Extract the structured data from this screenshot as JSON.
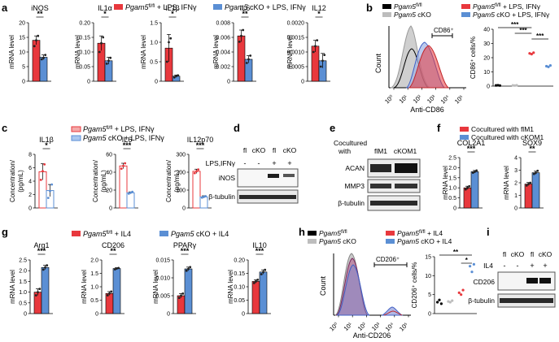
{
  "colors": {
    "red": "#e8383d",
    "blue": "#5b8fd4",
    "lightred": "#f4a9a9",
    "lightblue": "#a9c6ef",
    "black": "#000000",
    "grey": "#bdbdbd",
    "blot": "#2a2a2a"
  },
  "panels": {
    "a": "a",
    "b": "b",
    "c": "c",
    "d": "d",
    "e": "e",
    "f": "f",
    "g": "g",
    "h": "h",
    "i": "i"
  },
  "common": {
    "mrna_level": "mRNA level",
    "concentration": "Concentration/",
    "pg_ml": "(pg/mL)",
    "count": "Count",
    "beta_tubulin": "β-tubulin"
  },
  "chart_data": [
    {
      "panel": "a",
      "type": "bar",
      "title": "Panel a: cytokine mRNA (LPS, IFNγ)",
      "legend": [
        "Pgam5 fl/fl + LPS, IFNγ",
        "Pgam5 cKO + LPS, IFNγ"
      ],
      "ylabel": "mRNA level",
      "charts": [
        {
          "title": "iNOS",
          "ylim": [
            0,
            20
          ],
          "ticks": [
            "0",
            "5",
            "10",
            "15",
            "20"
          ],
          "values": [
            14,
            8.2
          ],
          "errors": [
            1.5,
            0.8
          ],
          "points": [
            [
              12,
              14,
              15.5
            ],
            [
              7.5,
              8,
              9
            ]
          ],
          "sig": "**"
        },
        {
          "title": "IL1α",
          "ylim": [
            0,
            0.2
          ],
          "ticks": [
            "0",
            "0.05",
            "0.10",
            "0.15",
            "0.20"
          ],
          "values": [
            0.13,
            0.07
          ],
          "errors": [
            0.025,
            0.012
          ],
          "points": [
            [
              0.1,
              0.13,
              0.15
            ],
            [
              0.06,
              0.07,
              0.08
            ]
          ],
          "sig": "*"
        },
        {
          "title": "IL1β",
          "ylim": [
            0,
            1.5
          ],
          "ticks": [
            "0",
            "0.5",
            "1.0",
            "1.5"
          ],
          "values": [
            0.85,
            0.13
          ],
          "errors": [
            0.35,
            0.03
          ],
          "points": [
            [
              0.5,
              1.0,
              1.1
            ],
            [
              0.1,
              0.13,
              0.15
            ]
          ],
          "sig": "*"
        },
        {
          "title": "IL6",
          "ylim": [
            0,
            0.008
          ],
          "ticks": [
            "0",
            "0.002",
            "0.004",
            "0.006",
            "0.008"
          ],
          "values": [
            0.0062,
            0.003
          ],
          "errors": [
            0.0008,
            0.0005
          ],
          "points": [
            [
              0.0054,
              0.0062,
              0.007
            ],
            [
              0.0025,
              0.003,
              0.0035
            ]
          ],
          "sig": "**"
        },
        {
          "title": "IL12",
          "ylim": [
            0,
            0.002
          ],
          "ticks": [
            "0",
            "0.0005",
            "0.0010",
            "0.0015",
            "0.0020"
          ],
          "values": [
            0.0012,
            0.0007
          ],
          "errors": [
            0.0002,
            0.00025
          ],
          "points": [
            [
              0.001,
              0.0012,
              0.0014
            ],
            [
              0.0005,
              0.0007,
              0.0009
            ]
          ],
          "sig": "*"
        }
      ]
    },
    {
      "panel": "b",
      "type": "histogram+scatter",
      "legend": [
        "Pgam5 fl/fl",
        "Pgam5 cKO",
        "Pgam5 fl/fl + LPS, IFNγ",
        "Pgam5 cKO + LPS, IFNγ"
      ],
      "hist": {
        "xlabel": "Anti-CD86",
        "ylabel": "Count",
        "gate": "CD86⁺",
        "xticks": [
          "10⁰",
          "10¹",
          "10²",
          "10³",
          "10⁴",
          "10⁵"
        ]
      },
      "scatter": {
        "ylabel": "CD86⁺ cells/%",
        "ylim": [
          0,
          40
        ],
        "ticks": [
          "0",
          "10",
          "20",
          "30",
          "40"
        ],
        "groups": [
          [
            0.5,
            0.6,
            0.4
          ],
          [
            0.5,
            0.4,
            0.6
          ],
          [
            23,
            22.5,
            23.5
          ],
          [
            14,
            13.5,
            14.5
          ]
        ],
        "sig": [
          "***",
          "***",
          "***"
        ]
      }
    },
    {
      "panel": "c",
      "type": "bar",
      "title": "Panel c: cytokine secretion",
      "legend": [
        "Pgam5 fl/fl + LPS, IFNγ",
        "Pgam5 cKO + LPS, IFNγ"
      ],
      "ylabel": "Concentration/ (pg/mL)",
      "charts": [
        {
          "title": "IL1β",
          "ylim": [
            0,
            8
          ],
          "ticks": [
            "0",
            "2",
            "4",
            "6",
            "8"
          ],
          "values": [
            5.4,
            2.6
          ],
          "errors": [
            1.2,
            0.9
          ],
          "points": [
            [
              4.2,
              5.5,
              6.5
            ],
            [
              1.5,
              2.5,
              3.5
            ]
          ],
          "sig": "*"
        },
        {
          "title": "IL6",
          "ylim": [
            0,
            60
          ],
          "ticks": [
            "0",
            "20",
            "40",
            "60"
          ],
          "values": [
            47,
            17
          ],
          "errors": [
            3,
            1
          ],
          "points": [
            [
              44,
              47,
              50
            ],
            [
              16,
              17,
              18
            ]
          ],
          "sig": "***"
        },
        {
          "title": "IL12p70",
          "ylim": [
            0,
            300
          ],
          "ticks": [
            "0",
            "100",
            "200",
            "300"
          ],
          "values": [
            205,
            62
          ],
          "errors": [
            12,
            6
          ],
          "points": [
            [
              195,
              205,
              215
            ],
            [
              58,
              62,
              66
            ]
          ],
          "sig": "***"
        }
      ]
    },
    {
      "panel": "f",
      "type": "bar",
      "title": "Panel f: cocultured chondrocyte markers",
      "legend": [
        "Cocultured with flM1",
        "Cocultured with cKOM1"
      ],
      "ylabel": "mRNA level",
      "charts": [
        {
          "title": "COL2A1",
          "ylim": [
            0,
            2.5
          ],
          "ticks": [
            "0",
            "0.5",
            "1.0",
            "1.5",
            "2.0",
            "2.5"
          ],
          "values": [
            1.0,
            1.8
          ],
          "errors": [
            0.08,
            0.06
          ],
          "points": [
            [
              0.92,
              1.0,
              1.08
            ],
            [
              1.75,
              1.8,
              1.86
            ]
          ],
          "sig": "***"
        },
        {
          "title": "SOX9",
          "ylim": [
            0,
            4
          ],
          "ticks": [
            "0",
            "1",
            "2",
            "3",
            "4"
          ],
          "values": [
            1.9,
            2.8
          ],
          "errors": [
            0.12,
            0.12
          ],
          "points": [
            [
              1.78,
              1.9,
              2.0
            ],
            [
              2.7,
              2.8,
              2.95
            ]
          ],
          "sig": "**"
        }
      ]
    },
    {
      "panel": "g",
      "type": "bar",
      "title": "Panel g: M2 markers (IL4)",
      "legend": [
        "Pgam5 fl/fl + IL4",
        "Pgam5 cKO + IL4"
      ],
      "ylabel": "mRNA level",
      "charts": [
        {
          "title": "Arg1",
          "ylim": [
            0,
            2.5
          ],
          "ticks": [
            "0",
            "0.5",
            "1.0",
            "1.5",
            "2.0",
            "2.5"
          ],
          "values": [
            1.0,
            2.15
          ],
          "errors": [
            0.15,
            0.1
          ],
          "points": [
            [
              0.85,
              1.0,
              1.15
            ],
            [
              2.05,
              2.15,
              2.25
            ]
          ],
          "sig": "***"
        },
        {
          "title": "CD206",
          "ylim": [
            0,
            2.0
          ],
          "ticks": [
            "0",
            "0.5",
            "1.0",
            "1.5",
            "2.0"
          ],
          "values": [
            0.75,
            1.68
          ],
          "errors": [
            0.07,
            0.03
          ],
          "points": [
            [
              0.68,
              0.75,
              0.82
            ],
            [
              1.65,
              1.68,
              1.7
            ]
          ],
          "sig": "**"
        },
        {
          "title": "PPARγ",
          "ylim": [
            0,
            0.015
          ],
          "ticks": [
            "0",
            "0.005",
            "0.010",
            "0.015"
          ],
          "values": [
            0.005,
            0.0125
          ],
          "errors": [
            0.0006,
            0.0005
          ],
          "points": [
            [
              0.0044,
              0.005,
              0.0056
            ],
            [
              0.012,
              0.0125,
              0.013
            ]
          ],
          "sig": "***"
        },
        {
          "title": "IL10",
          "ylim": [
            0,
            0.2
          ],
          "ticks": [
            "0",
            "0.05",
            "0.10",
            "0.15",
            "0.20"
          ],
          "values": [
            0.12,
            0.155
          ],
          "errors": [
            0.006,
            0.008
          ],
          "points": [
            [
              0.114,
              0.12,
              0.126
            ],
            [
              0.147,
              0.155,
              0.163
            ]
          ],
          "sig": "***"
        }
      ]
    },
    {
      "panel": "h",
      "type": "histogram+scatter",
      "legend": [
        "Pgam5 fl/fl",
        "Pgam5 cKO",
        "Pgam5 fl/fl + IL4",
        "Pgam5 cKO + IL4"
      ],
      "hist": {
        "xlabel": "Anti-CD206",
        "ylabel": "Count",
        "gate": "CD206⁺",
        "xticks": [
          "10⁰",
          "10¹",
          "10²",
          "10³",
          "10⁴",
          "10⁵"
        ]
      },
      "scatter": {
        "ylabel": "CD206⁺ cells/%",
        "ylim": [
          0,
          15
        ],
        "ticks": [
          "0",
          "5",
          "10",
          "15"
        ],
        "groups": [
          [
            3.0,
            3.6,
            2.6
          ],
          [
            3.2,
            3.0,
            3.4
          ],
          [
            5.5,
            5.0,
            6.2
          ],
          [
            12.5,
            11,
            13
          ]
        ],
        "sig": [
          "**",
          "*"
        ]
      }
    }
  ],
  "blots": {
    "d": {
      "lanes": [
        "fl",
        "cKO",
        "fl",
        "cKO"
      ],
      "treatment": "LPS,IFNγ",
      "signs": [
        "-",
        "-",
        "+",
        "+"
      ],
      "bands": [
        "iNOS",
        "β-tubulin"
      ]
    },
    "e": {
      "header": [
        "Cocultured",
        "with"
      ],
      "lanes": [
        "flM1",
        "cKOM1"
      ],
      "bands": [
        "ACAN",
        "MMP3",
        "β-tubulin"
      ]
    },
    "i": {
      "lanes": [
        "fl",
        "cKO",
        "fl",
        "cKO"
      ],
      "treatment": "IL4",
      "signs": [
        "-",
        "-",
        "+",
        "+"
      ],
      "bands": [
        "CD206",
        "β-tubulin"
      ]
    }
  },
  "legends": {
    "a": {
      "base": [
        "Pgam5",
        "Pgam5"
      ],
      "sup": "fl/fl",
      "suffix": [
        "+ LPS, IFNγ",
        "cKO + LPS, IFNγ"
      ]
    },
    "b": {
      "items": [
        "fl/fl",
        "cKO",
        "fl/fl + LPS, IFNγ",
        "cKO + LPS, IFNγ"
      ]
    },
    "g": {
      "items": [
        "fl/fl + IL4",
        "cKO + IL4"
      ]
    },
    "h": {
      "items": [
        "fl/fl",
        "cKO",
        "fl/fl + IL4",
        "cKO + IL4"
      ]
    },
    "f": {
      "items": [
        "Cocultured with flM1",
        "Cocultured with cKOM1"
      ]
    }
  }
}
